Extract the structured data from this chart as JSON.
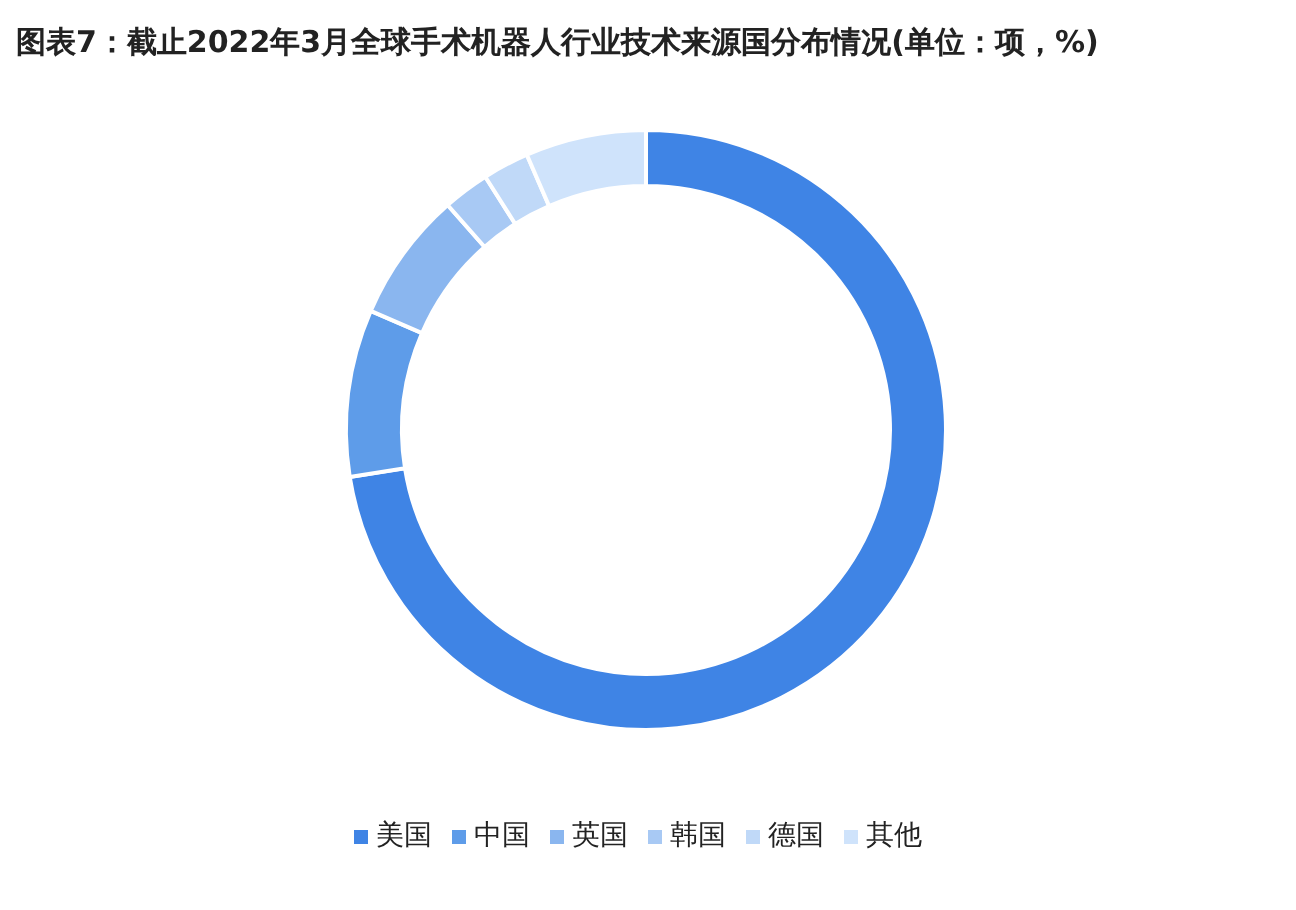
{
  "chart_data": {
    "type": "donut",
    "title": "图表7：截止2022年3月全球手术机器人行业技术来源国分布情况(单位：项，%)",
    "categories": [
      "美国",
      "中国",
      "英国",
      "韩国",
      "德国",
      "其他"
    ],
    "values": [
      72.5,
      9,
      7,
      2.5,
      2.5,
      6.5
    ],
    "colors": [
      "#3f84e5",
      "#5e9ce9",
      "#8ab6ef",
      "#a8c9f4",
      "#c0d9f8",
      "#cfe3fb"
    ],
    "legend": "bottom"
  }
}
